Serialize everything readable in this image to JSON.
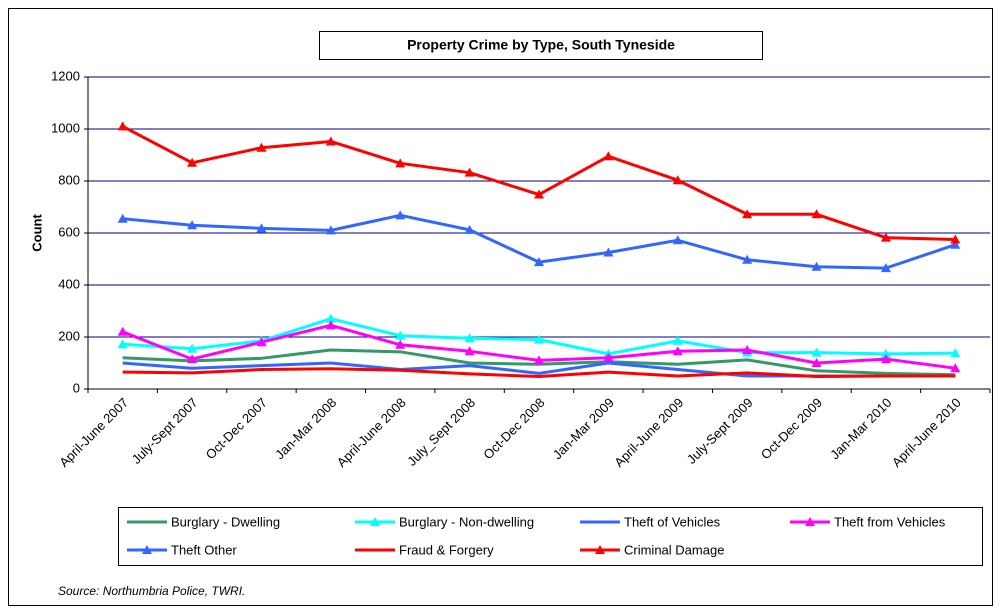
{
  "chart_data": {
    "type": "line",
    "title": "Property Crime by Type, South Tyneside",
    "y_label": "Count",
    "source": "Source: Northumbria Police, TWRI.",
    "categories": [
      "April-June 2007",
      "July-Sept 2007",
      "Oct-Dec 2007",
      "Jan-Mar 2008",
      "April-June 2008",
      "July_Sept 2008",
      "Oct-Dec 2008",
      "Jan-Mar 2009",
      "April-June 2009",
      "July-Sept 2009",
      "Oct-Dec 2009",
      "Jan-Mar 2010",
      "April-June 2010"
    ],
    "ylim": [
      0,
      1200
    ],
    "yticks": [
      0,
      200,
      400,
      600,
      800,
      1000,
      1200
    ],
    "grid": true,
    "series": [
      {
        "name": "Burglary - Dwelling",
        "color": "#339966",
        "marker": "none",
        "values": [
          120,
          108,
          118,
          150,
          143,
          100,
          95,
          105,
          95,
          112,
          70,
          60,
          55
        ]
      },
      {
        "name": "Burglary - Non-dwelling",
        "color": "#00ffff",
        "marker": "triangle",
        "values": [
          172,
          155,
          185,
          270,
          205,
          195,
          190,
          135,
          185,
          140,
          140,
          135,
          138
        ]
      },
      {
        "name": "Theft of Vehicles",
        "color": "#3366ff",
        "marker": "none",
        "values": [
          100,
          80,
          90,
          100,
          75,
          90,
          60,
          100,
          75,
          50,
          50,
          50,
          50
        ]
      },
      {
        "name": "Theft from Vehicles",
        "color": "#ff00ff",
        "marker": "triangle",
        "values": [
          220,
          115,
          180,
          245,
          170,
          145,
          110,
          120,
          145,
          150,
          100,
          115,
          80
        ]
      },
      {
        "name": "Theft Other",
        "color": "#3366ff",
        "marker": "triangle",
        "values": [
          655,
          630,
          618,
          610,
          668,
          612,
          488,
          525,
          572,
          497,
          470,
          465,
          555
        ]
      },
      {
        "name": "Fraud & Forgery",
        "color": "#ff0000",
        "marker": "none",
        "values": [
          65,
          62,
          75,
          78,
          72,
          58,
          48,
          65,
          50,
          62,
          48,
          50,
          50
        ]
      },
      {
        "name": "Criminal Damage",
        "color": "#ff0000",
        "marker": "triangle",
        "values": [
          1010,
          870,
          928,
          952,
          868,
          832,
          748,
          895,
          803,
          672,
          672,
          582,
          575
        ]
      }
    ]
  }
}
